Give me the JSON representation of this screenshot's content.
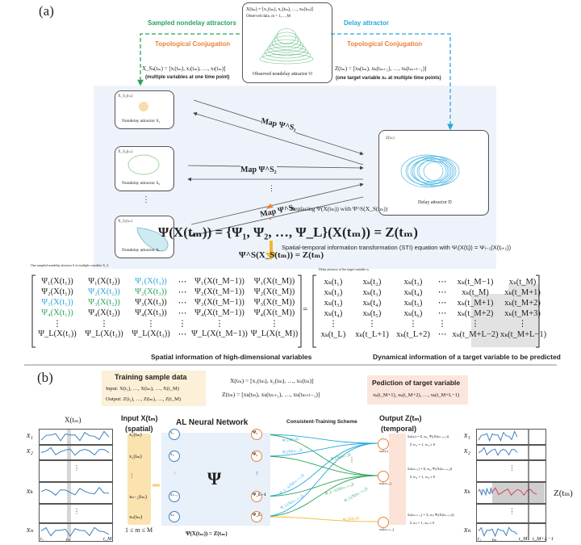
{
  "panel_a": {
    "label": "(a)",
    "observed": {
      "formula": "X(tₘ) = [x₁(tₘ), x₂(tₘ), …, xₙ(tₘ)]",
      "note": "Observed data, m = 1,…,M",
      "caption": "Observed nondelay attractor O"
    },
    "sampled_title": "Sampled nondelay attractors",
    "delay_title": "Delay attractor",
    "topo_left": "Topological Conjugation",
    "topo_right": "Topological Conjugation",
    "xs_formula": "X_Sₖ(tₘ) = [xᵢ(tₘ), xⱼ(tₘ), …, xₗ(tₘ)]",
    "xs_note": "(multiple variables at one time point)",
    "z_formula": "Z(tₘ) = [xₖ(tₘ), xₖ(tₘ₊₁), …, xₖ(tₘ₊ₗ₋₁)]",
    "z_note": "(one target variable xₖ at multiple time points)",
    "nondelay": [
      {
        "var": "X_S₁(tₘ)",
        "caption": "Nondelay attractor S₁"
      },
      {
        "var": "X_S₂(tₘ)",
        "caption": "Nondelay attractor S₂"
      },
      {
        "var": "X_Sᵣ(tₘ)",
        "caption": "Nondelay attractor Sᵣ"
      }
    ],
    "vdots": "⋮",
    "maps": [
      "Map Ψ^S₁",
      "Map Ψ^S₂",
      "Map Ψ^Sᵣ"
    ],
    "delay_box": {
      "var": "Z(tₘ)",
      "caption": "Delay attractor D"
    },
    "panel_equation": "Ψ^S(X_S(tₘ)) = Z(tₘ)",
    "replacing": "Replacing Ψ(X(tₘ)) with Ψ^S(X_S(tₘ))",
    "main_equation": "Ψ(X(tₘ)) = {Ψ₁, Ψ₂, …, Ψ_L}(X(tₘ)) = Z(tₘ)",
    "sti": "Spatial-temporal information transformation (STI) equation with Ψᵢ(X(tⱼ)) = Ψᵢ₋₁(X(tⱼ₊₁))",
    "left_matrix_caption_top": "One sampled nondelay attractor S of multiple variables X_S",
    "right_matrix_caption_top": "Delay attractor of the target variable xₖ",
    "left_matrix": [
      [
        "Ψ₁(X(t₁))",
        "Ψ₁(X(t₂))",
        "Ψ₁(X(t₃))",
        "⋯",
        "Ψ₁(X(t_M−1))",
        "Ψ₁(X(t_M))"
      ],
      [
        "Ψ₂(X(t₁))",
        "Ψ₂(X(t₂))",
        "Ψ₂(X(t₃))",
        "⋯",
        "Ψ₂(X(t_M−1))",
        "Ψ₂(X(t_M))"
      ],
      [
        "Ψ₃(X(t₁))",
        "Ψ₃(X(t₂))",
        "Ψ₃(X(t₃))",
        "⋯",
        "Ψ₃(X(t_M−1))",
        "Ψ₃(X(t_M))"
      ],
      [
        "Ψ₄(X(t₁))",
        "Ψ₄(X(t₂))",
        "Ψ₄(X(t₃))",
        "⋯",
        "Ψ₄(X(t_M−1))",
        "Ψ₄(X(t_M))"
      ],
      [
        "⋮",
        "⋮",
        "⋮",
        "⋮",
        "⋮",
        "⋮"
      ],
      [
        "Ψ_L(X(t₁))",
        "Ψ_L(X(t₂))",
        "Ψ_L(X(t₃))",
        "⋯",
        "Ψ_L(X(t_M−1))",
        "Ψ_L(X(t_M))"
      ]
    ],
    "left_matrix_colors": [
      [
        "",
        "",
        "#29a8dc",
        "",
        "",
        ""
      ],
      [
        "",
        "#29a8dc",
        "#2aa45a",
        "",
        "",
        ""
      ],
      [
        "#29a8dc",
        "#2aa45a",
        "",
        "",
        "",
        ""
      ],
      [
        "#2aa45a",
        "",
        "",
        "",
        "",
        ""
      ],
      [
        "",
        "",
        "",
        "",
        "",
        ""
      ],
      [
        "",
        "",
        "",
        "",
        "",
        ""
      ]
    ],
    "equals": "=",
    "right_matrix": [
      [
        "xₖ(t₁)",
        "xₖ(t₂)",
        "xₖ(t₃)",
        "⋯",
        "xₖ(t_M−1)",
        "xₖ(t_M)"
      ],
      [
        "xₖ(t₂)",
        "xₖ(t₃)",
        "xₖ(t₄)",
        "⋯",
        "xₖ(t_M)",
        "xₖ(t_M+1)"
      ],
      [
        "xₖ(t₃)",
        "xₖ(t₄)",
        "xₖ(t₅)",
        "⋯",
        "xₖ(t_M+1)",
        "xₖ(t_M+2)"
      ],
      [
        "xₖ(t₄)",
        "xₖ(t₅)",
        "xₖ(t₆)",
        "⋯",
        "xₖ(t_M+2)",
        "xₖ(t_M+3)"
      ],
      [
        "⋮",
        "⋮",
        "⋮",
        "⋮",
        "⋮",
        "⋮"
      ],
      [
        "xₖ(t_L)",
        "xₖ(t_L+1)",
        "xₖ(t_L+2)",
        "⋯",
        "xₖ(t_M+L−2)",
        "xₖ(t_M+L−1)"
      ]
    ],
    "left_matrix_caption": "Spatial information of high-dimensional variables",
    "right_matrix_caption": "Dynamical information of  a target variable to be predicted",
    "colors": {
      "green": "#2aa45a",
      "blue": "#29a8dc",
      "orange": "#e8843a",
      "yellow": "#f2b830",
      "panel_bg": "#eef3fb",
      "unknown_shade": "#e2e2e2"
    }
  },
  "panel_b": {
    "label": "(b)",
    "training": {
      "title": "Training sample data",
      "input": "Input:   X(t₁), …, X(tₘ), …, X(t_M)",
      "output": "Output: Z(t₁), …, Z(tₘ), …, Z(t_M)"
    },
    "x_def": "X(tₘ) = [x₁(tₘ), x₂(tₘ), …, xₙ(tₘ)]",
    "z_def": "Z(tₘ) = [xₖ(tₘ), xₖ(tₘ₊₁), …, xₖ(tₘ₊ₗ₋₁)]",
    "prediction": {
      "title": "Pediction of target variable",
      "values": "xₖ(t_M+1), xₖ(t_M+2), …, xₖ(t_M+L−1)"
    },
    "left_series_title": "X(tₘ)",
    "series_labels": [
      "x₁",
      "x₂",
      "",
      "xₖ",
      "",
      "xₙ"
    ],
    "left_axis": [
      "t₁",
      "tₘ",
      "t_M"
    ],
    "input_title": "Input X(tₘ)",
    "input_sub": "(spatial)",
    "inputs": [
      "x₁(tₘ)",
      "x₂(tₘ)",
      "⋮",
      "xₙ₋₁(tₘ)",
      "xₙ(tₘ)"
    ],
    "input_range": "1 ≤ m ≤ M",
    "nn_title": "AL Neural Network",
    "nn_symbol": "Ψ",
    "nn_inputs": [
      "x₁",
      "x₂",
      "⋮",
      "xₙ₋₁",
      "xₙ"
    ],
    "nn_outputs": [
      "Ψ₁",
      "Ψ₂",
      "⋮",
      "Ψ_L−1",
      "Ψ_L"
    ],
    "nn_equation": "Ψ(X(tₘ)) = Z(tₘ)",
    "scheme_title": "Consistent-Training Scheme",
    "edge_labels": [
      "Ψ₁(X(tₘ))",
      "Ψ₂(X(tₘ₋₁))",
      "Ψ_L−1(X(tₘ₋ₗ₊₂))",
      "Ψ_L(X(tₘ₋ₗ₊₁))",
      "Ψ₁(X(tₘ₊₁))",
      "Ψ_L−1(X(tₘ₋ₗ₊₃))",
      "Ψ_L(X(tₘ₋ₗ₊₂))",
      "Ψ₁(X(tₘ))"
    ],
    "output_title": "Output Z(tₘ)",
    "output_sub": "(temporal)",
    "outputs": [
      {
        "node": "xₖ(tₘ)",
        "formula": "x̂ₖ(tₘ) = Σᵢ wᵢ₁ Ψᵢ(X(tₘ₋ᵢ₊₁))",
        "constraint": "Σ wᵢ₁ = 1, wᵢ₁ ≥ 0"
      },
      {
        "node": "xₖ(tₘ₊₁)",
        "formula": "x̂ₖ(tₘ₊₁) = Σᵢ wᵢ₂ Ψᵢ(X(tₘ₋ᵢ₊₂))",
        "constraint": "Σ wᵢ₂ = 1, wᵢ₂ ≥ 0"
      },
      {
        "node": "xₖ(tₘ₊ₗ₋₁)",
        "formula": "x̂ₖ(tₘ₊ₗ₋₁) = Σᵢ wᵢₗ Ψᵢ(X(tₘ₋ᵢ₊ₗ))",
        "constraint": "Σ wᵢₗ = 1, wᵢₗ ≥ 0"
      }
    ],
    "output_vdots": "⋮",
    "right_series_labels": [
      "x₁",
      "x₂",
      "",
      "xₖ",
      "",
      "xₙ"
    ],
    "right_axis": [
      "t₁",
      "tₘ",
      "t_M",
      "t_M+L−1"
    ],
    "z_label": "Z(tₘ)",
    "colors": {
      "training_bg": "#fdf0d8",
      "prediction_bg": "#fbe5dc",
      "input_col": "#fbe3b0",
      "nn_bg": "#e8f0fa",
      "output_col": "#fbe3d8",
      "series": "#3d7fc0",
      "prediction_line": "#d84060"
    }
  }
}
